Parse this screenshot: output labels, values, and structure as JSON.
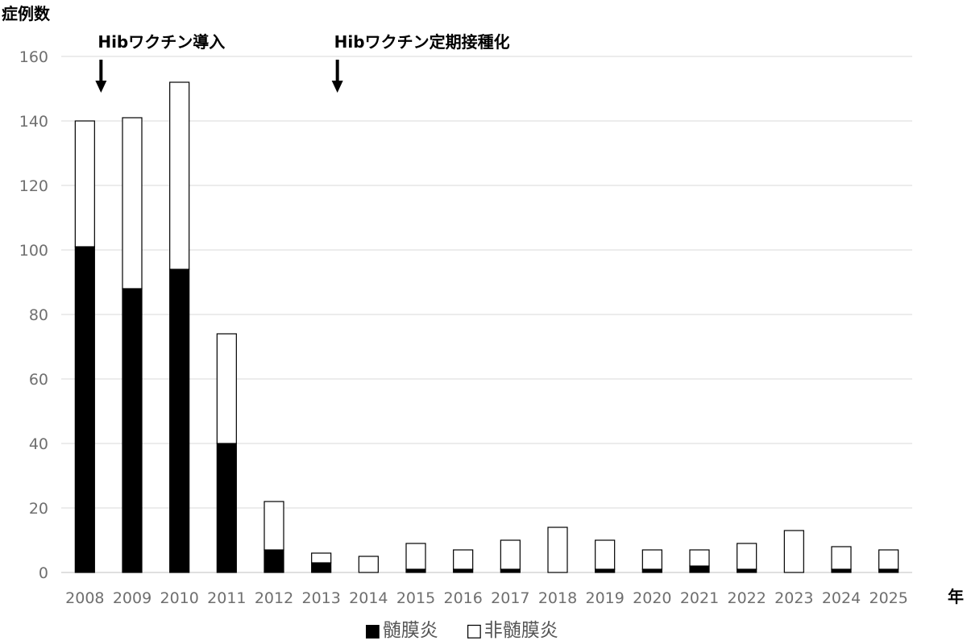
{
  "chart_data": {
    "type": "bar",
    "stacked": true,
    "ylabel": "症例数",
    "xlabel": "年",
    "ylim": [
      0,
      160
    ],
    "yticks": [
      0,
      20,
      40,
      60,
      80,
      100,
      120,
      140,
      160
    ],
    "grid": true,
    "legend_position": "bottom",
    "categories": [
      "2008",
      "2009",
      "2010",
      "2011",
      "2012",
      "2013",
      "2014",
      "2015",
      "2016",
      "2017",
      "2018",
      "2019",
      "2020",
      "2021",
      "2022",
      "2023",
      "2024",
      "2025"
    ],
    "series": [
      {
        "name": "髄膜炎",
        "color": "#000000",
        "values": [
          101,
          88,
          94,
          40,
          7,
          3,
          0,
          1,
          1,
          1,
          0,
          1,
          1,
          2,
          1,
          0,
          1,
          1
        ]
      },
      {
        "name": "非髄膜炎",
        "color": "#ffffff",
        "values": [
          39,
          53,
          58,
          34,
          15,
          3,
          5,
          8,
          6,
          9,
          14,
          9,
          6,
          5,
          8,
          13,
          7,
          6
        ]
      }
    ],
    "annotations": [
      {
        "text": "Hibワクチン導入",
        "category": "2008"
      },
      {
        "text": "Hibワクチン定期接種化",
        "category": "2013"
      }
    ],
    "legend": [
      {
        "marker": "■",
        "label": "髄膜炎"
      },
      {
        "marker": "□",
        "label": "非髄膜炎"
      }
    ]
  }
}
